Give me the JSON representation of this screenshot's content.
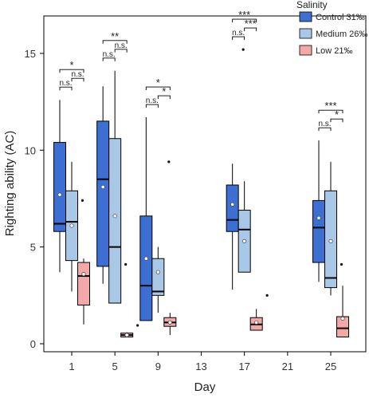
{
  "chart_data": {
    "type": "box",
    "xlabel": "Day",
    "ylabel": "Righting ability (AC)",
    "ylim": [
      -0.3,
      16.2
    ],
    "yticks": [
      0,
      5,
      10,
      15
    ],
    "xticks": [
      1,
      5,
      9,
      13,
      17,
      21,
      25
    ],
    "grid": false,
    "legend": {
      "title": "Salinity",
      "position": "top-right",
      "items": [
        {
          "label": "Control 31‰",
          "color": "#3c6fd1"
        },
        {
          "label": "Medium 26‰",
          "color": "#a9c7e6"
        },
        {
          "label": "Low 21‰",
          "color": "#f4a9a8"
        }
      ]
    },
    "groups": [
      {
        "day": 1,
        "boxes": [
          {
            "series": "Control 31‰",
            "whisker_low": 3.7,
            "q1": 5.8,
            "median": 6.2,
            "q3": 10.4,
            "whisker_high": 12.6,
            "mean": 7.7,
            "outliers": []
          },
          {
            "series": "Medium 26‰",
            "whisker_low": 2.7,
            "q1": 4.3,
            "median": 6.3,
            "q3": 7.9,
            "whisker_high": 9.4,
            "mean": 6.1,
            "outliers": [
              7.4
            ]
          },
          {
            "series": "Low 21‰",
            "whisker_low": 1.0,
            "q1": 2.0,
            "median": 3.5,
            "q3": 4.2,
            "whisker_high": 4.4,
            "mean": 3.6,
            "outliers": []
          }
        ]
      },
      {
        "day": 5,
        "boxes": [
          {
            "series": "Control 31‰",
            "whisker_low": 3.1,
            "q1": 4.0,
            "median": 8.5,
            "q3": 11.5,
            "whisker_high": 13.3,
            "mean": 8.1,
            "outliers": []
          },
          {
            "series": "Medium 26‰",
            "whisker_low": 2.1,
            "q1": 2.1,
            "median": 5.0,
            "q3": 10.6,
            "whisker_high": 14.1,
            "mean": 6.6,
            "outliers": [
              4.1
            ]
          },
          {
            "series": "Low 21‰",
            "whisker_low": 0.35,
            "q1": 0.35,
            "median": 0.45,
            "q3": 0.55,
            "whisker_high": 0.6,
            "mean": 0.45,
            "outliers": [
              0.95
            ]
          }
        ]
      },
      {
        "day": 9,
        "boxes": [
          {
            "series": "Control 31‰",
            "whisker_low": 1.2,
            "q1": 1.2,
            "median": 3.0,
            "q3": 6.6,
            "whisker_high": 11.7,
            "mean": 4.4,
            "outliers": []
          },
          {
            "series": "Medium 26‰",
            "whisker_low": 1.6,
            "q1": 2.5,
            "median": 2.7,
            "q3": 4.4,
            "whisker_high": 5.0,
            "mean": 3.7,
            "outliers": [
              9.4
            ]
          },
          {
            "series": "Low 21‰",
            "whisker_low": 0.45,
            "q1": 0.9,
            "median": 1.1,
            "q3": 1.35,
            "whisker_high": 1.6,
            "mean": 1.1,
            "outliers": []
          }
        ]
      },
      {
        "day": 17,
        "boxes": [
          {
            "series": "Control 31‰",
            "whisker_low": 2.8,
            "q1": 5.8,
            "median": 6.4,
            "q3": 8.2,
            "whisker_high": 9.3,
            "mean": 7.2,
            "outliers": [
              15.2
            ]
          },
          {
            "series": "Medium 26‰",
            "whisker_low": 3.7,
            "q1": 3.7,
            "median": 5.9,
            "q3": 6.9,
            "whisker_high": 8.4,
            "mean": 5.3,
            "outliers": []
          },
          {
            "series": "Low 21‰",
            "whisker_low": 0.7,
            "q1": 0.7,
            "median": 1.0,
            "q3": 1.35,
            "whisker_high": 1.8,
            "mean": 1.1,
            "outliers": [
              2.5
            ]
          }
        ]
      },
      {
        "day": 25,
        "boxes": [
          {
            "series": "Control 31‰",
            "whisker_low": 3.2,
            "q1": 4.2,
            "median": 6.0,
            "q3": 7.4,
            "whisker_high": 10.5,
            "mean": 6.5,
            "outliers": []
          },
          {
            "series": "Medium 26‰",
            "whisker_low": 2.5,
            "q1": 2.9,
            "median": 3.4,
            "q3": 7.9,
            "whisker_high": 9.4,
            "mean": 5.3,
            "outliers": [
              4.1
            ]
          },
          {
            "series": "Low 21‰",
            "whisker_low": 0.35,
            "q1": 0.35,
            "median": 0.8,
            "q3": 1.4,
            "whisker_high": 3.0,
            "mean": 1.3,
            "outliers": []
          }
        ]
      }
    ],
    "annotations": [
      {
        "day": 1,
        "items": [
          {
            "pair": [
              "Control 31‰",
              "Low 21‰"
            ],
            "label": "*"
          },
          {
            "pair": [
              "Medium 26‰",
              "Low 21‰"
            ],
            "label": "n.s."
          },
          {
            "pair": [
              "Control 31‰",
              "Medium 26‰"
            ],
            "label": "n.s."
          }
        ]
      },
      {
        "day": 5,
        "items": [
          {
            "pair": [
              "Control 31‰",
              "Low 21‰"
            ],
            "label": "**"
          },
          {
            "pair": [
              "Medium 26‰",
              "Low 21‰"
            ],
            "label": "n.s."
          },
          {
            "pair": [
              "Control 31‰",
              "Medium 26‰"
            ],
            "label": "n.s."
          }
        ]
      },
      {
        "day": 9,
        "items": [
          {
            "pair": [
              "Control 31‰",
              "Low 21‰"
            ],
            "label": "*"
          },
          {
            "pair": [
              "Medium 26‰",
              "Low 21‰"
            ],
            "label": "*"
          },
          {
            "pair": [
              "Control 31‰",
              "Medium 26‰"
            ],
            "label": "n.s."
          }
        ]
      },
      {
        "day": 17,
        "items": [
          {
            "pair": [
              "Control 31‰",
              "Low 21‰"
            ],
            "label": "***"
          },
          {
            "pair": [
              "Medium 26‰",
              "Low 21‰"
            ],
            "label": "***"
          },
          {
            "pair": [
              "Control 31‰",
              "Medium 26‰"
            ],
            "label": "n.s."
          }
        ]
      },
      {
        "day": 25,
        "items": [
          {
            "pair": [
              "Control 31‰",
              "Low 21‰"
            ],
            "label": "***"
          },
          {
            "pair": [
              "Medium 26‰",
              "Low 21‰"
            ],
            "label": "*"
          },
          {
            "pair": [
              "Control 31‰",
              "Medium 26‰"
            ],
            "label": "n.s."
          }
        ]
      }
    ]
  }
}
